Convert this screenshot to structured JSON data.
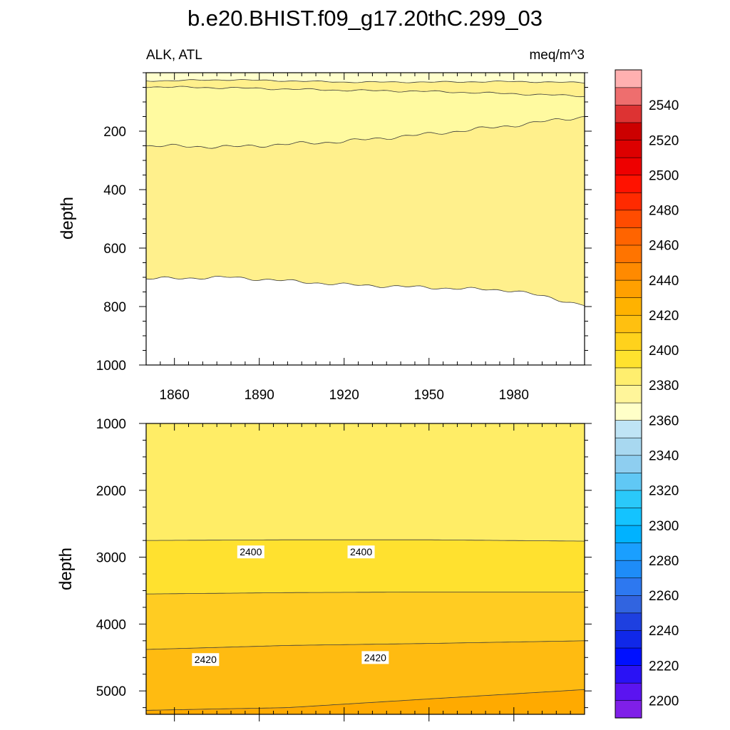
{
  "title": "b.e20.BHIST.f09_g17.20thC.299_03",
  "chart_data": [
    {
      "type": "heatmap",
      "subtype": "filled-contour",
      "title": "b.e20.BHIST.f09_g17.20thC.299_03",
      "left_label": "ALK, ATL",
      "right_label": "meq/m^3",
      "xlabel": "",
      "ylabel": "depth",
      "xlim": [
        1850,
        2005
      ],
      "ylim": [
        0,
        1000
      ],
      "y_reversed": true,
      "x_ticks": [
        1860,
        1890,
        1920,
        1950,
        1980
      ],
      "x_tick_labels": [
        "1860",
        "1890",
        "1920",
        "1950",
        "1980"
      ],
      "y_ticks": [
        200,
        400,
        600,
        800,
        1000
      ],
      "y_tick_labels": [
        "200",
        "400",
        "600",
        "800",
        "1000"
      ],
      "fill_bands": [
        {
          "min": 2380,
          "max": 2385,
          "color": "#FFFFCC"
        },
        {
          "min": 2385,
          "max": 2390,
          "color": "#FFF08C"
        },
        {
          "min": 2390,
          "max": 2395,
          "color": "#FFFAA0"
        },
        {
          "min": 2385,
          "max": 2390,
          "color": "#FFF08C"
        }
      ],
      "contour_lines": [
        {
          "x": [
            1850,
            1880,
            1920,
            1950,
            1980,
            2005
          ],
          "y": [
            28,
            24,
            32,
            32,
            30,
            34
          ]
        },
        {
          "x": [
            1850,
            1880,
            1920,
            1950,
            1980,
            2005
          ],
          "y": [
            48,
            52,
            60,
            64,
            72,
            80
          ]
        },
        {
          "x": [
            1850,
            1880,
            1920,
            1950,
            1980,
            2005
          ],
          "y": [
            250,
            254,
            235,
            210,
            180,
            150
          ]
        },
        {
          "x": [
            1850,
            1880,
            1920,
            1950,
            1980,
            2005
          ],
          "y": [
            705,
            700,
            725,
            735,
            745,
            795
          ]
        }
      ]
    },
    {
      "type": "heatmap",
      "subtype": "filled-contour",
      "xlabel": "",
      "ylabel": "depth",
      "xlim": [
        1850,
        2005
      ],
      "ylim": [
        1000,
        5350
      ],
      "y_reversed": true,
      "x_ticks": [
        1860,
        1890,
        1920,
        1950,
        1980
      ],
      "y_ticks": [
        1000,
        2000,
        3000,
        4000,
        5000
      ],
      "y_tick_labels": [
        "1000",
        "2000",
        "3000",
        "4000",
        "5000"
      ],
      "fill_bands": [
        {
          "min": 2390,
          "max": 2400,
          "color": "#FFED66"
        },
        {
          "min": 2400,
          "max": 2410,
          "color": "#FFE12F"
        },
        {
          "min": 2410,
          "max": 2420,
          "color": "#FFCC22"
        },
        {
          "min": 2420,
          "max": 2430,
          "color": "#FFBB11"
        },
        {
          "min": 2430,
          "max": 2440,
          "color": "#FFAA00"
        }
      ],
      "contour_lines": [
        {
          "x": [
            1850,
            1900,
            1950,
            2005
          ],
          "y": [
            2750,
            2740,
            2740,
            2760
          ],
          "level": 2400
        },
        {
          "x": [
            1850,
            1900,
            1950,
            2005
          ],
          "y": [
            3550,
            3530,
            3520,
            3520
          ],
          "level": 2410
        },
        {
          "x": [
            1850,
            1900,
            1950,
            2005
          ],
          "y": [
            4380,
            4320,
            4290,
            4250
          ],
          "level": 2420
        },
        {
          "x": [
            1850,
            1900,
            1950,
            2005
          ],
          "y": [
            5290,
            5250,
            5120,
            4980
          ],
          "level": 2430
        }
      ],
      "contour_labels": [
        {
          "text": "2400",
          "x": 1887,
          "y": 2740
        },
        {
          "text": "2400",
          "x": 1926,
          "y": 2740
        },
        {
          "text": "2420",
          "x": 1871,
          "y": 4350
        },
        {
          "text": "2420",
          "x": 1931,
          "y": 4320
        }
      ]
    }
  ],
  "colorbar": {
    "min": 2190,
    "max": 2560,
    "step": 10,
    "tick_labels": [
      "2540",
      "2520",
      "2500",
      "2480",
      "2460",
      "2440",
      "2420",
      "2400",
      "2380",
      "2360",
      "2340",
      "2320",
      "2300",
      "2280",
      "2260",
      "2240",
      "2220",
      "2200"
    ],
    "colors_bottom_to_top": [
      "#7F1FE8",
      "#5B14F0",
      "#2A12F5",
      "#0010FF",
      "#1028E8",
      "#1E40E0",
      "#3164E0",
      "#2D78F0",
      "#1E8CF8",
      "#1A9FFF",
      "#00B2FF",
      "#14C3FF",
      "#2AC9FA",
      "#60C8F5",
      "#8ECEF0",
      "#A8D8F0",
      "#BFE4F5",
      "#FFFFC8",
      "#FFF59A",
      "#FFEE6E",
      "#FFE22E",
      "#FFD21C",
      "#FFC010",
      "#FFB200",
      "#FFA000",
      "#FF8A00",
      "#FF7400",
      "#FF6400",
      "#FF4C00",
      "#FF2A00",
      "#FF1200",
      "#EE0000",
      "#DD0000",
      "#CC0000",
      "#DD3333",
      "#EE6E6E",
      "#FFB0B0"
    ]
  }
}
